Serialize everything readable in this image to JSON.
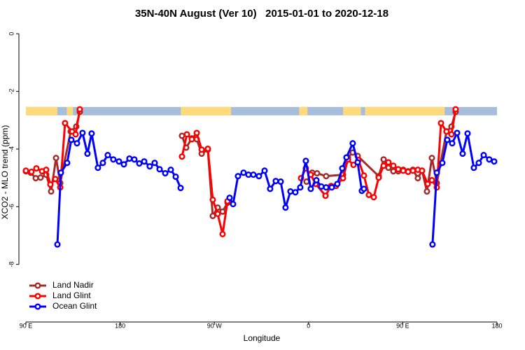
{
  "chart_data": {
    "type": "line",
    "title": "35N-40N August (Ver 10)   2015-01-01 to 2020-12-18",
    "x_label": "Longitude",
    "y_label": "XCO2 - MLO trend (ppm)",
    "xlim": [
      90,
      540
    ],
    "ylim": [
      -10,
      0.2
    ],
    "xticks": [
      {
        "value": 90,
        "label": "90 E"
      },
      180,
      {
        "value": 270,
        "label": "90 W"
      },
      {
        "value": 360,
        "label": "0"
      },
      {
        "value": 450,
        "label": "90 E"
      },
      {
        "value": 540,
        "label": "180"
      }
    ],
    "yticks": [
      0,
      -2,
      -4,
      -6,
      -8
    ],
    "legend": "bottom-left",
    "strip": {
      "ylim": [
        -2.83,
        -2.54
      ],
      "ocean_color": "#a6bddb",
      "land_color": "#fddb7c",
      "land": [
        [
          90,
          120
        ],
        [
          129,
          135
        ],
        [
          139,
          144
        ],
        [
          238,
          286
        ],
        [
          351,
          359
        ],
        [
          393,
          410
        ],
        [
          414,
          490
        ]
      ]
    },
    "series": [
      {
        "name": "Land Nadir",
        "color": "#a52a2a",
        "x": [
          90.0,
          94.7,
          99.4,
          104.0,
          109.4,
          114.1,
          118.8,
          122.8,
          132.8,
          138.1,
          141.5,
          null,
          239.1,
          243.1,
          248.5,
          253.2,
          257.9,
          263.8,
          268.5,
          273.2,
          277.9,
          282.6,
          null,
          358.1,
          363.5,
          368.1,
          376.8,
          392.9,
          397.6,
          402.2,
          406.9,
          427.0,
          431.7,
          436.3,
          441.0,
          445.7,
          450.4,
          455.1,
          459.7,
          464.4,
          468.4,
          473.1,
          477.8,
          482.5,
          491.8,
          496.5,
          500.5
        ],
        "values": [
          -4.77,
          -4.82,
          -5.01,
          -4.99,
          -4.89,
          -5.47,
          -4.31,
          -5.18,
          -3.39,
          -3.22,
          -2.71,
          null,
          -3.54,
          -3.95,
          -3.63,
          -3.66,
          -4.16,
          -4.02,
          -6.32,
          -6.03,
          -6.17,
          -5.86,
          null,
          -5.13,
          -4.82,
          -4.84,
          -4.94,
          -4.89,
          -4.29,
          -4.12,
          -4.24,
          -4.94,
          -4.36,
          -4.65,
          -4.77,
          -4.77,
          -4.72,
          -4.77,
          -4.72,
          -5.01,
          -4.75,
          -5.47,
          -4.31,
          -5.18,
          -3.39,
          -3.22,
          -2.71
        ]
      },
      {
        "name": "Land Glint",
        "color": "#ff0000",
        "x": [
          90.0,
          95.3,
          100.0,
          105.4,
          109.4,
          113.4,
          118.1,
          122.8,
          127.4,
          134.1,
          137.5,
          141.5,
          null,
          239.1,
          243.8,
          248.5,
          253.2,
          257.9,
          263.8,
          268.5,
          273.2,
          277.9,
          282.6,
          null,
          352.8,
          357.4,
          362.1,
          366.8,
          376.2,
          381.5,
          386.2,
          392.9,
          397.6,
          402.9,
          407.6,
          412.9,
          417.6,
          422.3,
          427.0,
          431.7,
          436.3,
          441.0,
          445.7,
          450.4,
          455.1,
          459.7,
          464.4,
          468.4,
          473.8,
          477.8,
          482.5,
          486.5,
          491.8,
          496.5,
          500.5
        ],
        "values": [
          -4.75,
          -4.79,
          -4.67,
          -4.77,
          -4.72,
          -5.23,
          -5.04,
          -5.33,
          -3.1,
          -3.39,
          -3.49,
          -2.62,
          null,
          -4.26,
          -3.49,
          -3.66,
          -3.44,
          -4.02,
          -3.99,
          -5.76,
          -6.25,
          -6.95,
          -5.81,
          null,
          -5.01,
          -4.67,
          -4.89,
          -5.21,
          -5.62,
          -5.28,
          -5.28,
          -5.01,
          -4.36,
          -4.55,
          -4.38,
          -4.92,
          -5.59,
          -5.67,
          -4.99,
          -4.58,
          -4.46,
          -4.58,
          -4.7,
          -4.75,
          -4.79,
          -4.75,
          -4.72,
          -4.75,
          -5.21,
          -5.08,
          -5.33,
          -3.1,
          -3.39,
          -3.49,
          -2.62
        ]
      },
      {
        "name": "Ocean Glint",
        "color": "#0000ff",
        "x": [
          120.1,
          123.4,
          129.4,
          133.4,
          138.8,
          144.1,
          148.8,
          152.8,
          158.8,
          163.5,
          168.2,
          173.5,
          178.9,
          183.6,
          188.9,
          193.6,
          198.3,
          203.0,
          208.3,
          213.0,
          217.7,
          223.1,
          228.4,
          233.1,
          237.8,
          null,
          284.6,
          287.9,
          292.6,
          297.9,
          302.6,
          307.3,
          312.6,
          318.0,
          323.3,
          328.7,
          333.4,
          338.0,
          342.7,
          347.4,
          352.1,
          357.4,
          362.1,
          367.5,
          372.2,
          376.8,
          382.2,
          387.5,
          392.2,
          396.2,
          402.2,
          406.9,
          410.9,
          412.9,
          null,
          478.4,
          482.5,
          487.8,
          492.5,
          497.2,
          501.9,
          507.2,
          511.9,
          517.9,
          522.6,
          527.3,
          532.6,
          537.3
        ],
        "values": [
          -7.31,
          -4.82,
          -4.48,
          -3.68,
          -3.8,
          -3.44,
          -4.16,
          -3.46,
          -4.65,
          -4.48,
          -4.21,
          -4.36,
          -4.43,
          -4.53,
          -4.33,
          -4.36,
          -4.5,
          -4.43,
          -4.6,
          -4.48,
          -4.7,
          -4.84,
          -4.72,
          -4.96,
          -5.35,
          null,
          -5.69,
          -5.91,
          -4.94,
          -4.82,
          -4.89,
          -4.89,
          -4.94,
          -4.75,
          -5.38,
          -5.11,
          -5.13,
          -6.03,
          -5.47,
          -5.5,
          -5.33,
          -4.41,
          -5.38,
          -5.08,
          -5.3,
          -5.33,
          -5.33,
          -5.21,
          -4.67,
          -4.29,
          -3.8,
          -4.46,
          -5.45,
          -5.38,
          null,
          -7.31,
          -4.82,
          -4.48,
          -3.68,
          -3.8,
          -3.44,
          -4.16,
          -3.46,
          -4.65,
          -4.48,
          -4.21,
          -4.36,
          -4.43
        ]
      }
    ]
  }
}
